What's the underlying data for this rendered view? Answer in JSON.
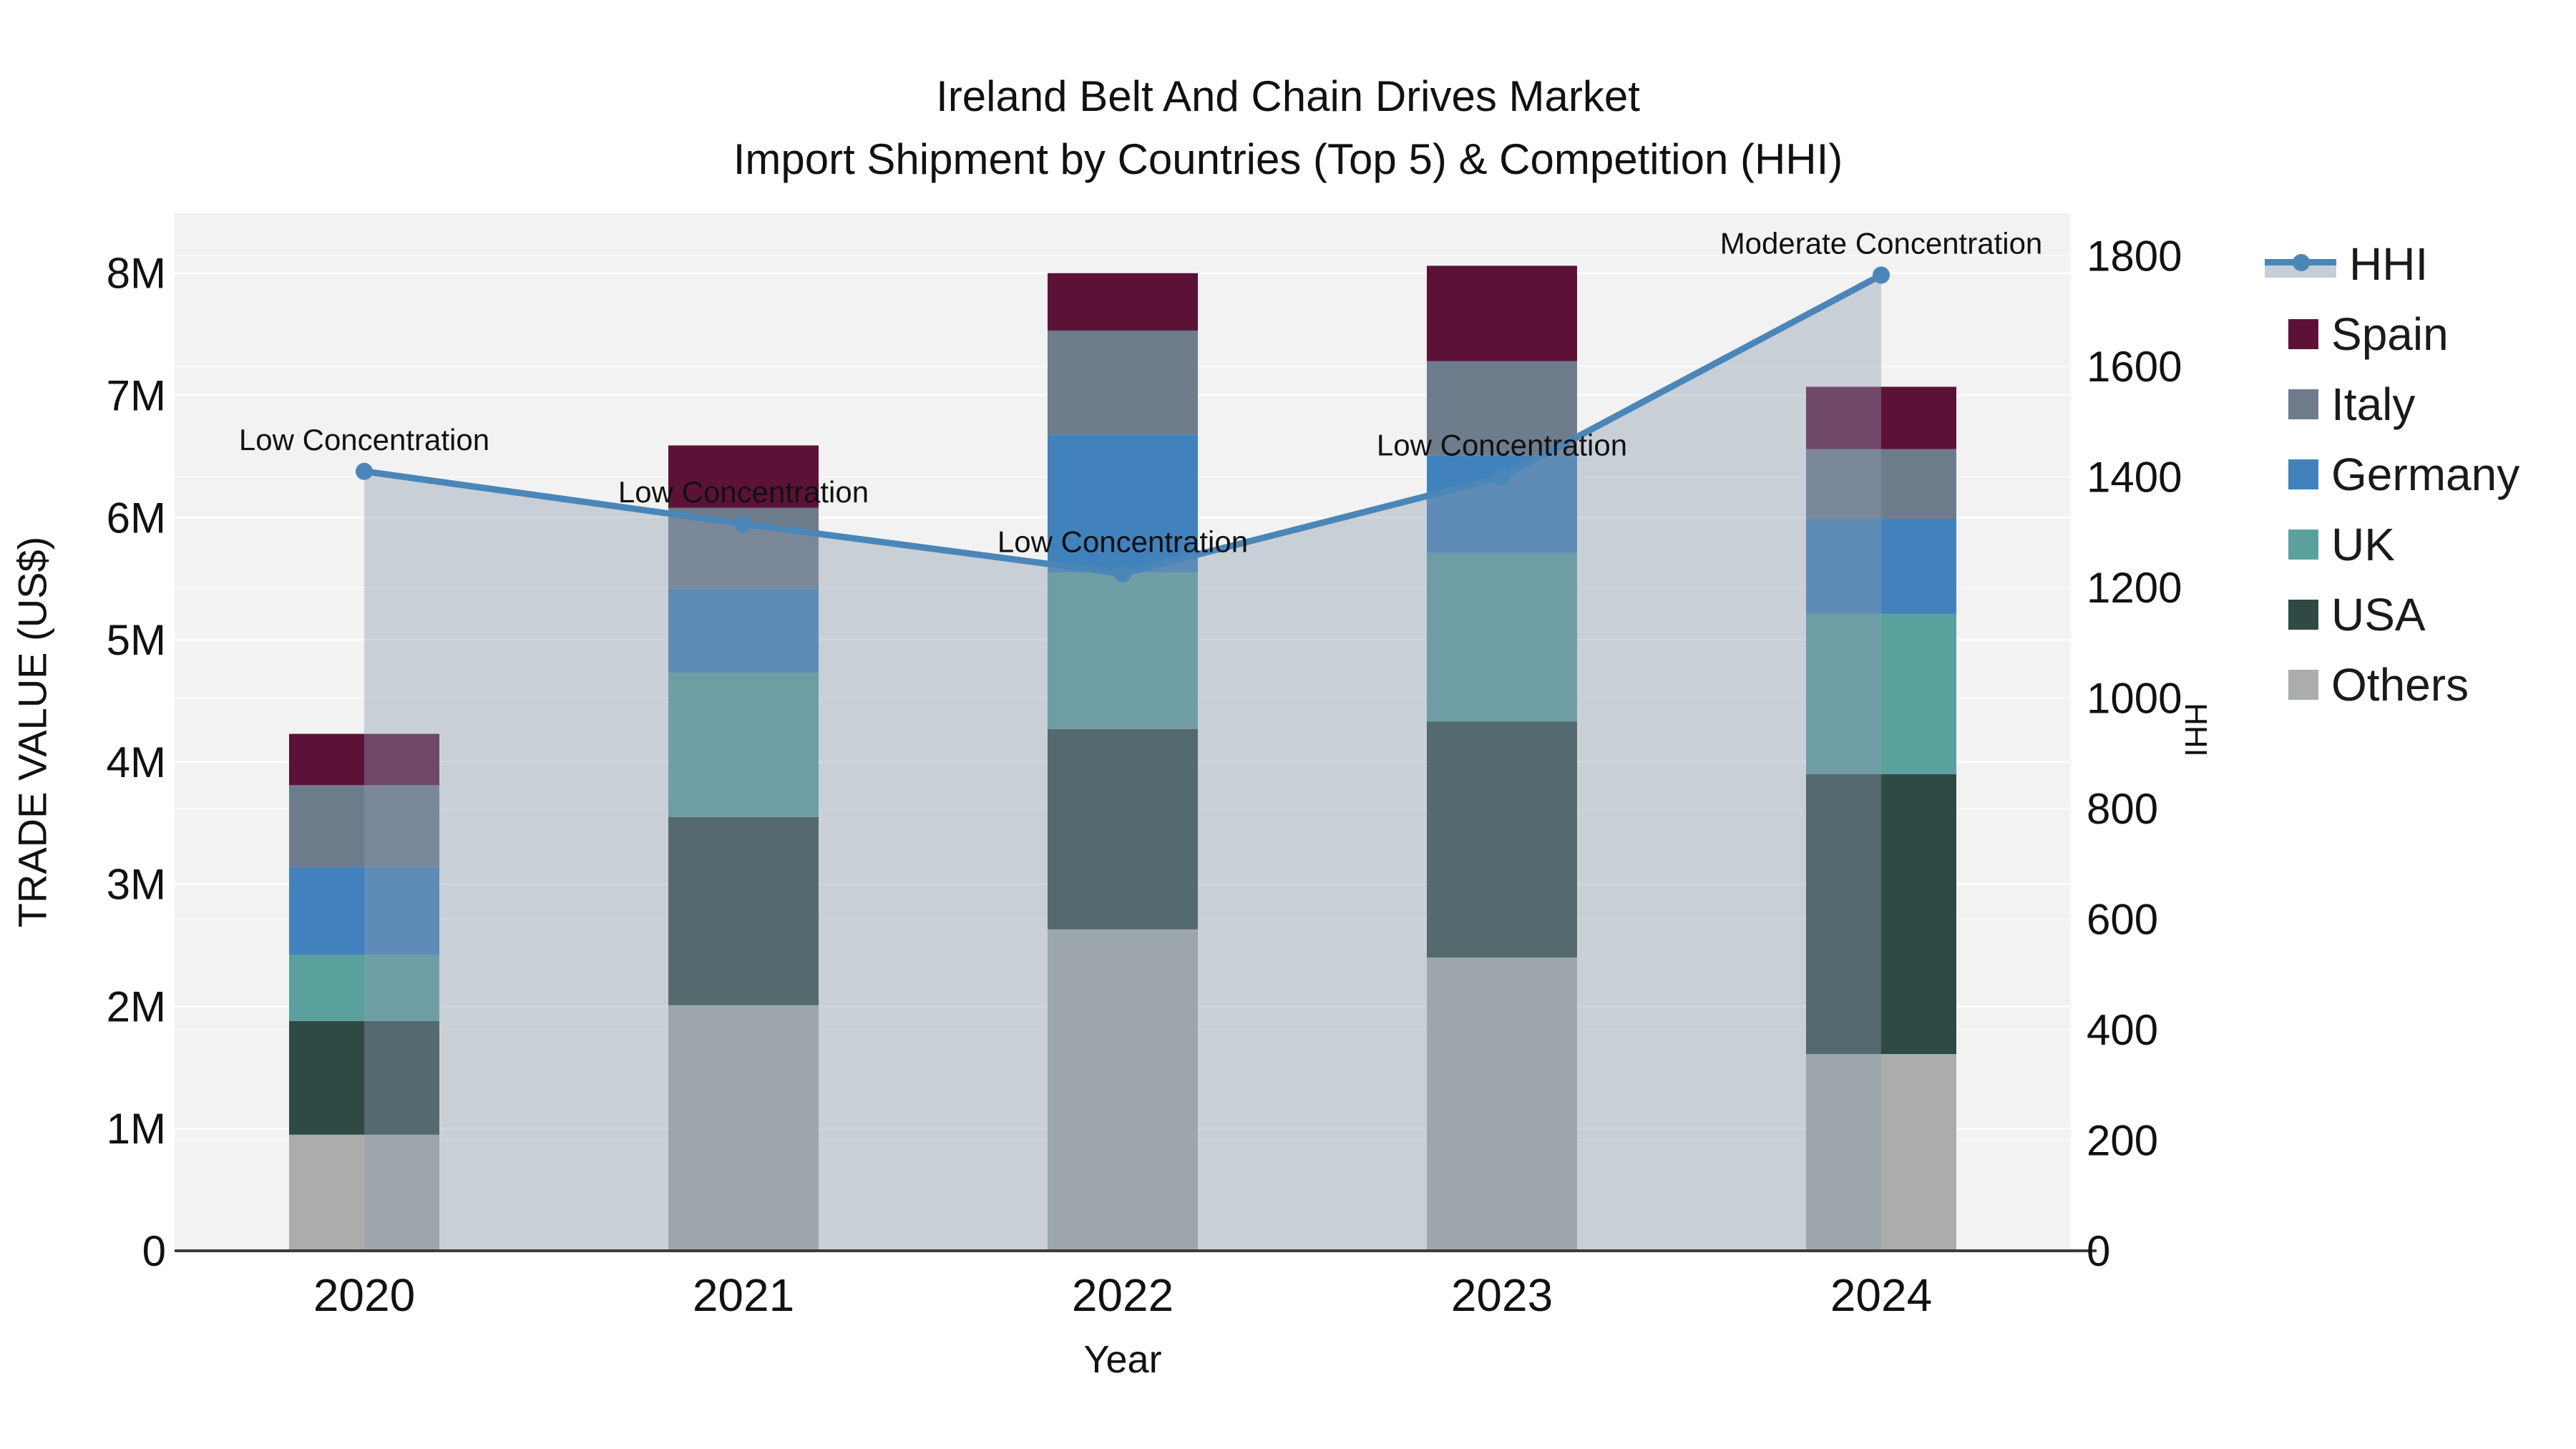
{
  "title": {
    "line1": "Ireland Belt And Chain Drives Market",
    "line2": "Import Shipment by Countries (Top 5) & Competition (HHI)"
  },
  "chart_data": {
    "type": "combo: stacked-bar (left axis) + line-area (right axis)",
    "categories": [
      "2020",
      "2021",
      "2022",
      "2023",
      "2024"
    ],
    "xlabel": "Year",
    "ylabel_left": "TRADE VALUE (US$)",
    "ylabel_right": "HHI",
    "y_left_ticks": [
      "0",
      "1M",
      "2M",
      "3M",
      "4M",
      "5M",
      "6M",
      "7M",
      "8M"
    ],
    "y_left_max_musd": 8.49,
    "y_right_ticks": [
      "0",
      "200",
      "400",
      "600",
      "800",
      "1000",
      "1200",
      "1400",
      "1600",
      "1800"
    ],
    "y_right_max": 1877,
    "grid": "on",
    "legend_position": "right",
    "series": [
      {
        "name": "Spain",
        "values_musd": [
          0.42,
          0.51,
          0.47,
          0.78,
          0.51
        ]
      },
      {
        "name": "Italy",
        "values_musd": [
          0.67,
          0.66,
          0.85,
          0.77,
          0.57
        ]
      },
      {
        "name": "Germany",
        "values_musd": [
          0.72,
          0.69,
          1.13,
          0.8,
          0.78
        ]
      },
      {
        "name": "UK",
        "values_musd": [
          0.54,
          1.18,
          1.28,
          1.38,
          1.31
        ]
      },
      {
        "name": "USA",
        "values_musd": [
          0.93,
          1.54,
          1.64,
          1.93,
          2.29
        ]
      },
      {
        "name": "Others",
        "values_musd": [
          0.95,
          2.01,
          2.63,
          2.4,
          1.61
        ]
      }
    ],
    "stack_totals_musd": [
      4.22,
      6.59,
      8.0,
      8.06,
      7.07
    ],
    "hhi_line": {
      "name": "HHI",
      "values": [
        1410,
        1315,
        1225,
        1400,
        1765
      ]
    },
    "annotations": [
      {
        "category": "2020",
        "text": "Low Concentration"
      },
      {
        "category": "2021",
        "text": "Low Concentration"
      },
      {
        "category": "2022",
        "text": "Low Concentration"
      },
      {
        "category": "2023",
        "text": "Low Concentration"
      },
      {
        "category": "2024",
        "text": "Moderate Concentration"
      }
    ],
    "legend_entries": [
      "HHI",
      "Spain",
      "Italy",
      "Germany",
      "UK",
      "USA",
      "Others"
    ],
    "colors": {
      "Spain": "#5C1237",
      "Italy": "#6E7C8C",
      "Germany": "#4282BC",
      "UK": "#5AA09D",
      "USA": "#2F4A44",
      "Others": "#AAADAC",
      "hhi_line": "#4A86B8",
      "hhi_area": "rgba(140,155,176,0.40)",
      "plot_background": "#F2F2F2",
      "gridline": "#FFFFFF"
    }
  }
}
